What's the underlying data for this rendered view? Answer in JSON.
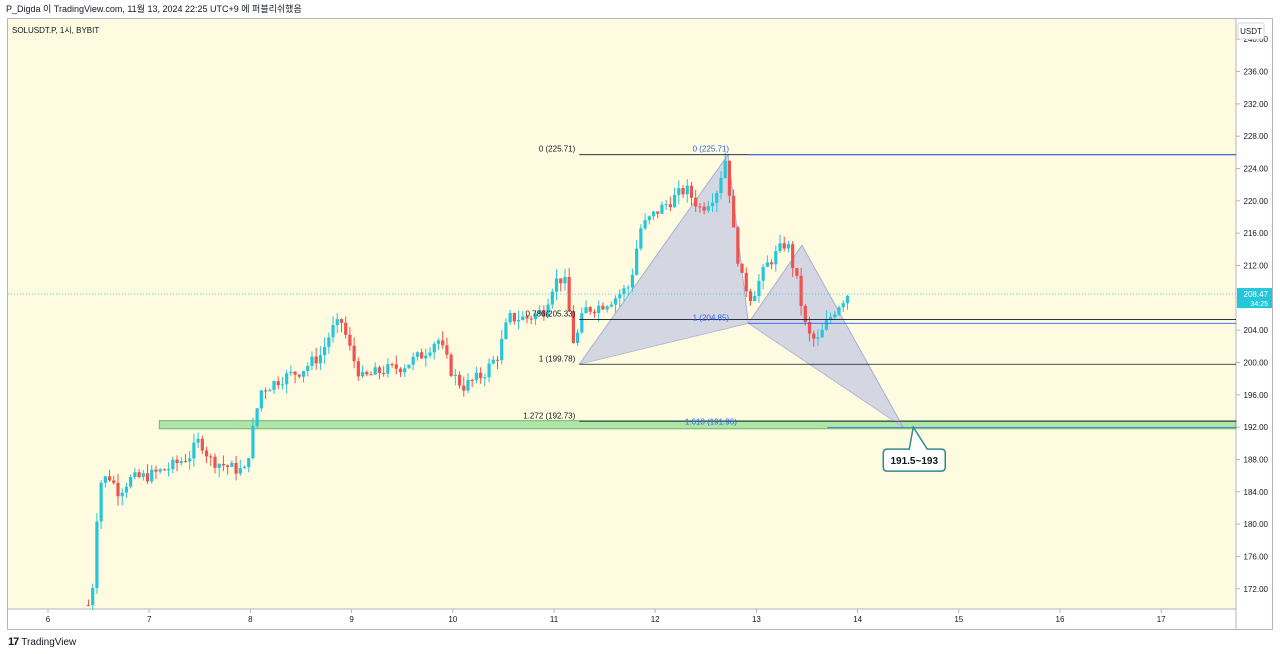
{
  "header": {
    "title": "P_Digda 이 TradingView.com, 11월 13, 2024 22:25 UTC+9 에 퍼블리쉬했음"
  },
  "symbol": {
    "label": "SOLUSDT.P, 1시, BYBIT"
  },
  "price_axis": {
    "currency": "USDT",
    "current_price": "208.47",
    "countdown": "34:25"
  },
  "footer": {
    "logo_mark": "17",
    "logo_text": "TradingView"
  },
  "colors": {
    "background": "#fefbe0",
    "up": "#26c6da",
    "down": "#ef5350",
    "pattern": "#c5cbe3",
    "zone": "#a5e0a0",
    "zone_border": "#4caf50",
    "fib_blue": "#2962ff",
    "fib_black": "#131722",
    "callout": "#2e8b8b"
  },
  "chart_data": {
    "type": "candlestick",
    "x_axis": {
      "ticks": [
        "6",
        "7",
        "8",
        "9",
        "10",
        "11",
        "12",
        "13",
        "14",
        "15",
        "16",
        "17"
      ]
    },
    "y_axis": {
      "range": [
        169.5,
        242.5
      ],
      "ticks": [
        "240.00",
        "236.00",
        "232.00",
        "228.00",
        "224.00",
        "220.00",
        "216.00",
        "212.00",
        "208.00",
        "204.00",
        "200.00",
        "196.00",
        "192.00",
        "188.00",
        "184.00",
        "180.00",
        "176.00",
        "172.00"
      ]
    },
    "candle_close_path": [
      [
        6.4,
        170.0
      ],
      [
        6.45,
        173.0
      ],
      [
        6.5,
        185.0
      ],
      [
        6.6,
        186.0
      ],
      [
        6.7,
        184.0
      ],
      [
        6.8,
        185.5
      ],
      [
        7.0,
        186.0
      ],
      [
        7.2,
        187.0
      ],
      [
        7.4,
        188.5
      ],
      [
        7.5,
        190.5
      ],
      [
        7.6,
        188.0
      ],
      [
        7.8,
        187.0
      ],
      [
        7.95,
        186.5
      ],
      [
        8.0,
        190.0
      ],
      [
        8.1,
        196.5
      ],
      [
        8.3,
        198.0
      ],
      [
        8.5,
        199.0
      ],
      [
        8.7,
        201.0
      ],
      [
        8.8,
        204.0
      ],
      [
        8.9,
        205.0
      ],
      [
        9.0,
        201.0
      ],
      [
        9.1,
        198.0
      ],
      [
        9.3,
        199.0
      ],
      [
        9.5,
        199.5
      ],
      [
        9.7,
        201.0
      ],
      [
        9.85,
        203.0
      ],
      [
        10.0,
        198.5
      ],
      [
        10.1,
        197.0
      ],
      [
        10.3,
        198.5
      ],
      [
        10.45,
        201.0
      ],
      [
        10.55,
        205.5
      ],
      [
        10.75,
        205.5
      ],
      [
        10.9,
        206.5
      ],
      [
        11.0,
        210.0
      ],
      [
        11.1,
        210.5
      ],
      [
        11.2,
        202.0
      ],
      [
        11.3,
        206.5
      ],
      [
        11.45,
        207.0
      ],
      [
        11.6,
        208.0
      ],
      [
        11.75,
        209.5
      ],
      [
        11.85,
        216.5
      ],
      [
        12.0,
        218.5
      ],
      [
        12.15,
        220.0
      ],
      [
        12.3,
        221.5
      ],
      [
        12.45,
        219.0
      ],
      [
        12.6,
        221.0
      ],
      [
        12.7,
        225.5
      ],
      [
        12.77,
        216.5
      ],
      [
        12.85,
        210.5
      ],
      [
        12.95,
        208.0
      ],
      [
        13.1,
        212.0
      ],
      [
        13.2,
        213.5
      ],
      [
        13.3,
        215.0
      ],
      [
        13.4,
        210.0
      ],
      [
        13.5,
        203.5
      ],
      [
        13.6,
        202.5
      ],
      [
        13.7,
        205.0
      ],
      [
        13.8,
        207.0
      ],
      [
        13.9,
        208.5
      ]
    ],
    "harmonic_pattern": {
      "points": [
        [
          11.25,
          199.78
        ],
        [
          12.72,
          225.71
        ],
        [
          12.92,
          204.85
        ],
        [
          13.45,
          214.5
        ],
        [
          14.45,
          192.0
        ]
      ]
    },
    "fib_levels_left": [
      {
        "label": "0 (225.71)",
        "value": 225.71
      },
      {
        "label": "0.786(205.33)",
        "value": 205.33
      },
      {
        "label": "1 (199.78)",
        "value": 199.78
      },
      {
        "label": "1.272 (192.73)",
        "value": 192.73
      }
    ],
    "fib_levels_right": [
      {
        "label": "0 (225.71)",
        "value": 225.71
      },
      {
        "label": "1 (204.85)",
        "value": 204.85
      },
      {
        "label": "1.618 (191.96)",
        "value": 191.96
      }
    ],
    "target_zone": {
      "from": 191.8,
      "to": 192.8,
      "start_x": 7.1
    },
    "callout": {
      "text": "191.5~193",
      "anchor": [
        14.55,
        192.0
      ]
    },
    "current_price": 208.47
  }
}
